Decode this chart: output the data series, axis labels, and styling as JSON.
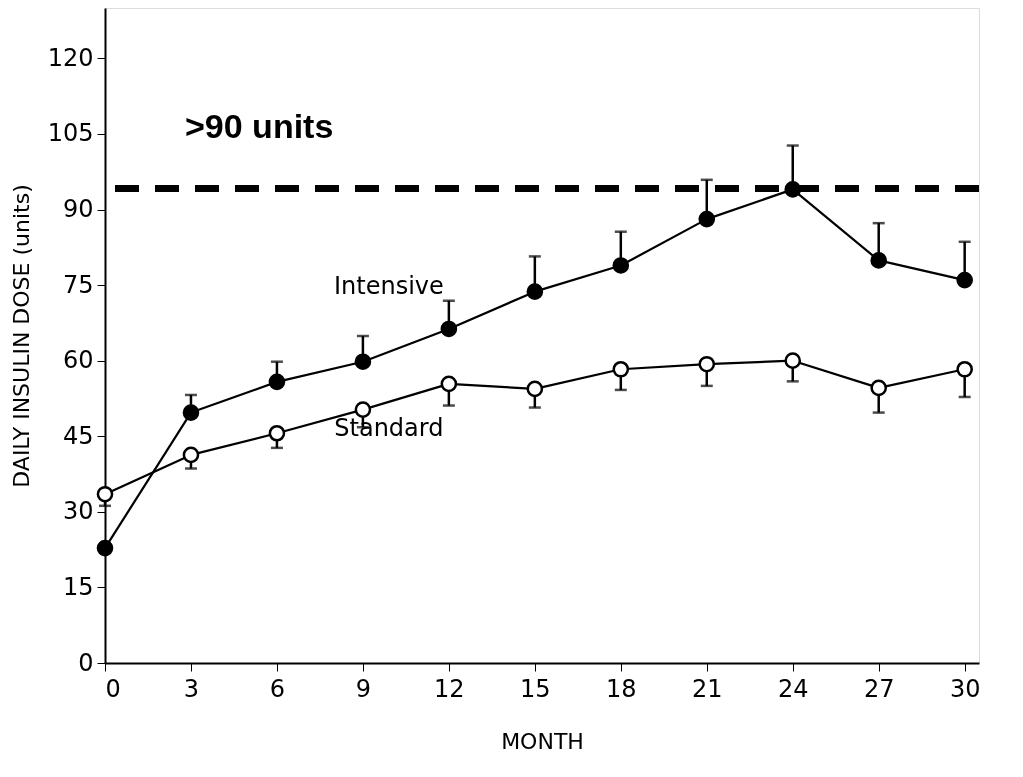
{
  "chart_data": {
    "type": "line",
    "xlabel": "MONTH",
    "ylabel": "DAILY INSULIN DOSE (units)",
    "x": [
      0,
      3,
      6,
      9,
      12,
      15,
      18,
      21,
      24,
      27,
      30
    ],
    "xlim": [
      0,
      30.5
    ],
    "xticks": [
      0,
      3,
      6,
      9,
      12,
      15,
      18,
      21,
      24,
      27,
      30
    ],
    "ylim": [
      0,
      130
    ],
    "yticks": [
      0,
      15,
      30,
      45,
      60,
      75,
      90,
      105,
      120
    ],
    "marker": "circle",
    "line_style": "solid",
    "grid": false,
    "series": [
      {
        "name": "Intensive",
        "color": "#000000",
        "values": [
          22.8,
          49.7,
          55.8,
          59.8,
          66.3,
          73.7,
          78.9,
          88.1,
          94,
          79.9,
          76
        ],
        "errors": [
          null,
          [
            49.7,
            53.2
          ],
          [
            55.8,
            59.8
          ],
          [
            59.8,
            64.9
          ],
          [
            66.3,
            71.9
          ],
          [
            73.7,
            80.7
          ],
          [
            78.9,
            85.6
          ],
          [
            88.1,
            95.9
          ],
          [
            94,
            102.7
          ],
          [
            79.9,
            87.3
          ],
          [
            76,
            83.6
          ]
        ]
      },
      {
        "name": "Standard",
        "color": "#ffffff",
        "values": [
          33.5,
          41.3,
          45.6,
          50.3,
          55.4,
          54.4,
          58.3,
          59.3,
          60,
          54.6,
          58.3
        ],
        "errors": [
          [
            31.2,
            33.5
          ],
          [
            38.6,
            41.3
          ],
          [
            42.7,
            45.6
          ],
          [
            46.8,
            50.3
          ],
          [
            51.1,
            55.4
          ],
          [
            50.7,
            54.4
          ],
          [
            54.2,
            58.3
          ],
          [
            55,
            59.3
          ],
          [
            55.9,
            60
          ],
          [
            49.7,
            54.6
          ],
          [
            52.8,
            58.3
          ]
        ]
      }
    ],
    "ref_lines": [
      {
        "axis": "y",
        "value": 94.2,
        "label": ">90 units",
        "color": "#000000",
        "line_style": "dashed"
      }
    ]
  }
}
